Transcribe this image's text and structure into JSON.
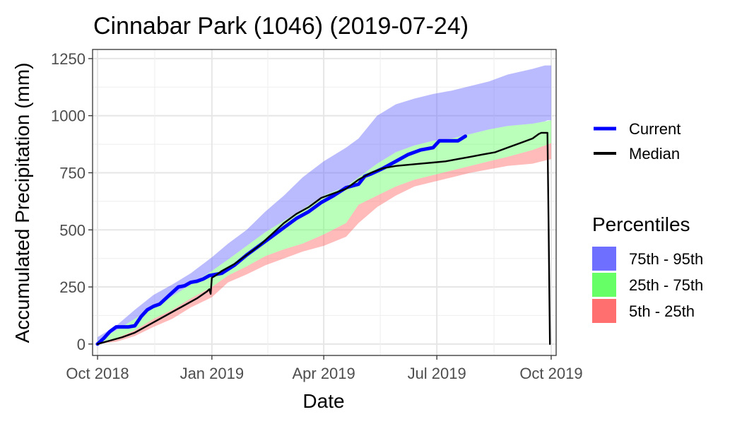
{
  "chart_data": {
    "type": "area",
    "title": "Cinnabar Park (1046) (2019-07-24)",
    "xlabel": "Date",
    "ylabel": "Accumulated Precipitation (mm)",
    "ylim": [
      -50,
      1290
    ],
    "xlim_days": [
      -4,
      369
    ],
    "x_ticks": [
      {
        "label": "Oct 2018",
        "day": 0
      },
      {
        "label": "Jan 2019",
        "day": 92
      },
      {
        "label": "Apr 2019",
        "day": 182
      },
      {
        "label": "Jul 2019",
        "day": 273
      },
      {
        "label": "Oct 2019",
        "day": 365
      }
    ],
    "y_ticks": [
      0,
      250,
      500,
      750,
      1000,
      1250
    ],
    "bands": [
      {
        "name": "5th - 25th",
        "color": "#ff6666",
        "opacity": 0.45,
        "days": [
          0,
          15,
          30,
          45,
          60,
          75,
          92,
          105,
          120,
          135,
          150,
          165,
          182,
          200,
          210,
          225,
          240,
          255,
          270,
          285,
          300,
          315,
          330,
          350,
          365
        ],
        "lower": [
          0,
          10,
          35,
          75,
          110,
          160,
          205,
          270,
          305,
          345,
          375,
          405,
          430,
          470,
          530,
          600,
          650,
          690,
          710,
          730,
          750,
          765,
          780,
          790,
          810
        ],
        "upper": [
          5,
          25,
          60,
          110,
          150,
          200,
          250,
          300,
          340,
          385,
          415,
          440,
          480,
          530,
          610,
          650,
          690,
          720,
          740,
          760,
          780,
          800,
          820,
          850,
          880
        ]
      },
      {
        "name": "25th - 75th",
        "color": "#66ff66",
        "opacity": 0.45,
        "days": [
          0,
          15,
          30,
          45,
          60,
          75,
          92,
          105,
          120,
          135,
          150,
          165,
          182,
          200,
          210,
          225,
          240,
          255,
          270,
          285,
          300,
          315,
          330,
          350,
          365
        ],
        "lower": [
          5,
          25,
          60,
          110,
          150,
          200,
          250,
          300,
          340,
          385,
          415,
          440,
          480,
          530,
          610,
          650,
          690,
          720,
          740,
          760,
          780,
          800,
          820,
          850,
          880
        ],
        "upper": [
          15,
          60,
          110,
          160,
          210,
          260,
          320,
          370,
          430,
          490,
          540,
          590,
          650,
          690,
          730,
          790,
          840,
          870,
          890,
          900,
          920,
          940,
          955,
          965,
          980
        ]
      },
      {
        "name": "75th - 95th",
        "color": "#6666ff",
        "opacity": 0.45,
        "days": [
          0,
          15,
          30,
          45,
          60,
          75,
          92,
          105,
          120,
          135,
          150,
          165,
          182,
          200,
          210,
          225,
          240,
          255,
          270,
          285,
          300,
          315,
          330,
          350,
          360,
          362,
          365
        ],
        "lower": [
          15,
          60,
          110,
          160,
          210,
          260,
          320,
          370,
          430,
          490,
          540,
          590,
          650,
          690,
          730,
          790,
          840,
          870,
          890,
          900,
          920,
          940,
          955,
          965,
          975,
          980,
          980
        ],
        "upper": [
          30,
          80,
          150,
          215,
          260,
          310,
          380,
          440,
          500,
          580,
          650,
          730,
          800,
          860,
          900,
          1000,
          1050,
          1075,
          1095,
          1110,
          1130,
          1150,
          1180,
          1205,
          1220,
          1220,
          1220
        ]
      }
    ],
    "series": [
      {
        "name": "Current",
        "color": "#0000ff",
        "days": [
          0,
          5,
          10,
          15,
          20,
          25,
          30,
          35,
          40,
          45,
          50,
          55,
          60,
          65,
          70,
          75,
          80,
          85,
          90,
          95,
          100,
          110,
          120,
          130,
          140,
          150,
          160,
          170,
          180,
          190,
          200,
          210,
          215,
          220,
          230,
          240,
          250,
          260,
          270,
          275,
          280,
          290,
          296
        ],
        "values": [
          0,
          25,
          55,
          75,
          75,
          75,
          80,
          120,
          150,
          165,
          175,
          200,
          225,
          250,
          255,
          270,
          275,
          285,
          300,
          305,
          310,
          345,
          390,
          430,
          470,
          510,
          550,
          580,
          620,
          650,
          685,
          700,
          735,
          745,
          770,
          800,
          830,
          850,
          860,
          890,
          890,
          890,
          910
        ]
      },
      {
        "name": "Median",
        "color": "#000000",
        "days": [
          0,
          10,
          20,
          30,
          40,
          50,
          60,
          70,
          80,
          88,
          90,
          91,
          92,
          95,
          100,
          110,
          120,
          130,
          140,
          150,
          160,
          170,
          180,
          190,
          200,
          210,
          220,
          230,
          240,
          250,
          260,
          270,
          280,
          290,
          300,
          310,
          320,
          330,
          340,
          350,
          355,
          357,
          360,
          362,
          363,
          364
        ],
        "values": [
          0,
          15,
          30,
          50,
          80,
          110,
          140,
          170,
          200,
          230,
          240,
          220,
          290,
          300,
          320,
          350,
          390,
          430,
          480,
          530,
          570,
          600,
          640,
          660,
          680,
          720,
          750,
          770,
          780,
          785,
          790,
          795,
          800,
          810,
          820,
          830,
          840,
          860,
          880,
          900,
          920,
          925,
          925,
          925,
          500,
          0
        ]
      }
    ],
    "legend_lines": [
      {
        "label": "Current",
        "color": "#0000ff"
      },
      {
        "label": "Median",
        "color": "#000000"
      }
    ],
    "legend_title": "Percentiles",
    "legend_fills": [
      {
        "label": "75th - 95th",
        "color": "#6f6fff"
      },
      {
        "label": "25th - 75th",
        "color": "#66ff66"
      },
      {
        "label": "5th - 25th",
        "color": "#ff6f6f"
      }
    ]
  }
}
